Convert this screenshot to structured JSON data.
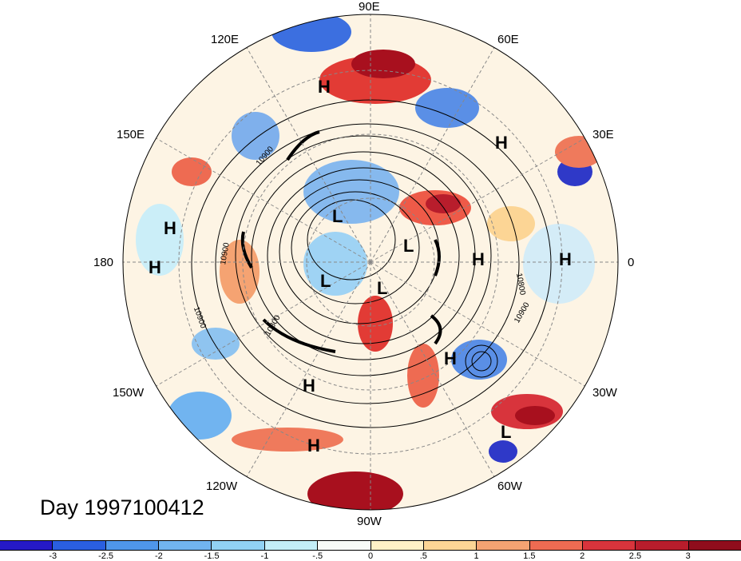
{
  "map": {
    "title": "Day 1997100412",
    "longitude_labels": [
      "90E",
      "60E",
      "30E",
      "0",
      "30W",
      "60W",
      "90W",
      "120W",
      "150W",
      "180",
      "150E",
      "120E"
    ],
    "contour_labels": [
      "10900",
      "10900",
      "10900",
      "10800",
      "10800",
      "10900"
    ],
    "pressure_centers": [
      "H",
      "H",
      "H",
      "H",
      "H",
      "H",
      "H",
      "H",
      "H",
      "L",
      "L",
      "L",
      "L",
      "L"
    ],
    "colors": {
      "neg_strong": "#2e1fd1",
      "neg_mid": "#5aa0ec",
      "neg_light": "#aeeaf7",
      "neutral": "#fffff4",
      "pos_light": "#fde3a5",
      "pos_mid": "#f2694c",
      "pos_strong": "#a8101e"
    }
  },
  "colorbar": {
    "tick_labels": [
      "-3",
      "-2.5",
      "-2",
      "-1.5",
      "-1",
      "-.5",
      "0",
      ".5",
      "1",
      "1.5",
      "2",
      "2.5",
      "3"
    ],
    "colors": [
      "#2519c7",
      "#2a5fe0",
      "#4f96ea",
      "#71b4f0",
      "#91d2f4",
      "#c3eef8",
      "#f8fbf8",
      "#fff1c7",
      "#fcd595",
      "#f5a372",
      "#ee6b52",
      "#d8343c",
      "#b81d2c",
      "#8f0d1c"
    ]
  }
}
